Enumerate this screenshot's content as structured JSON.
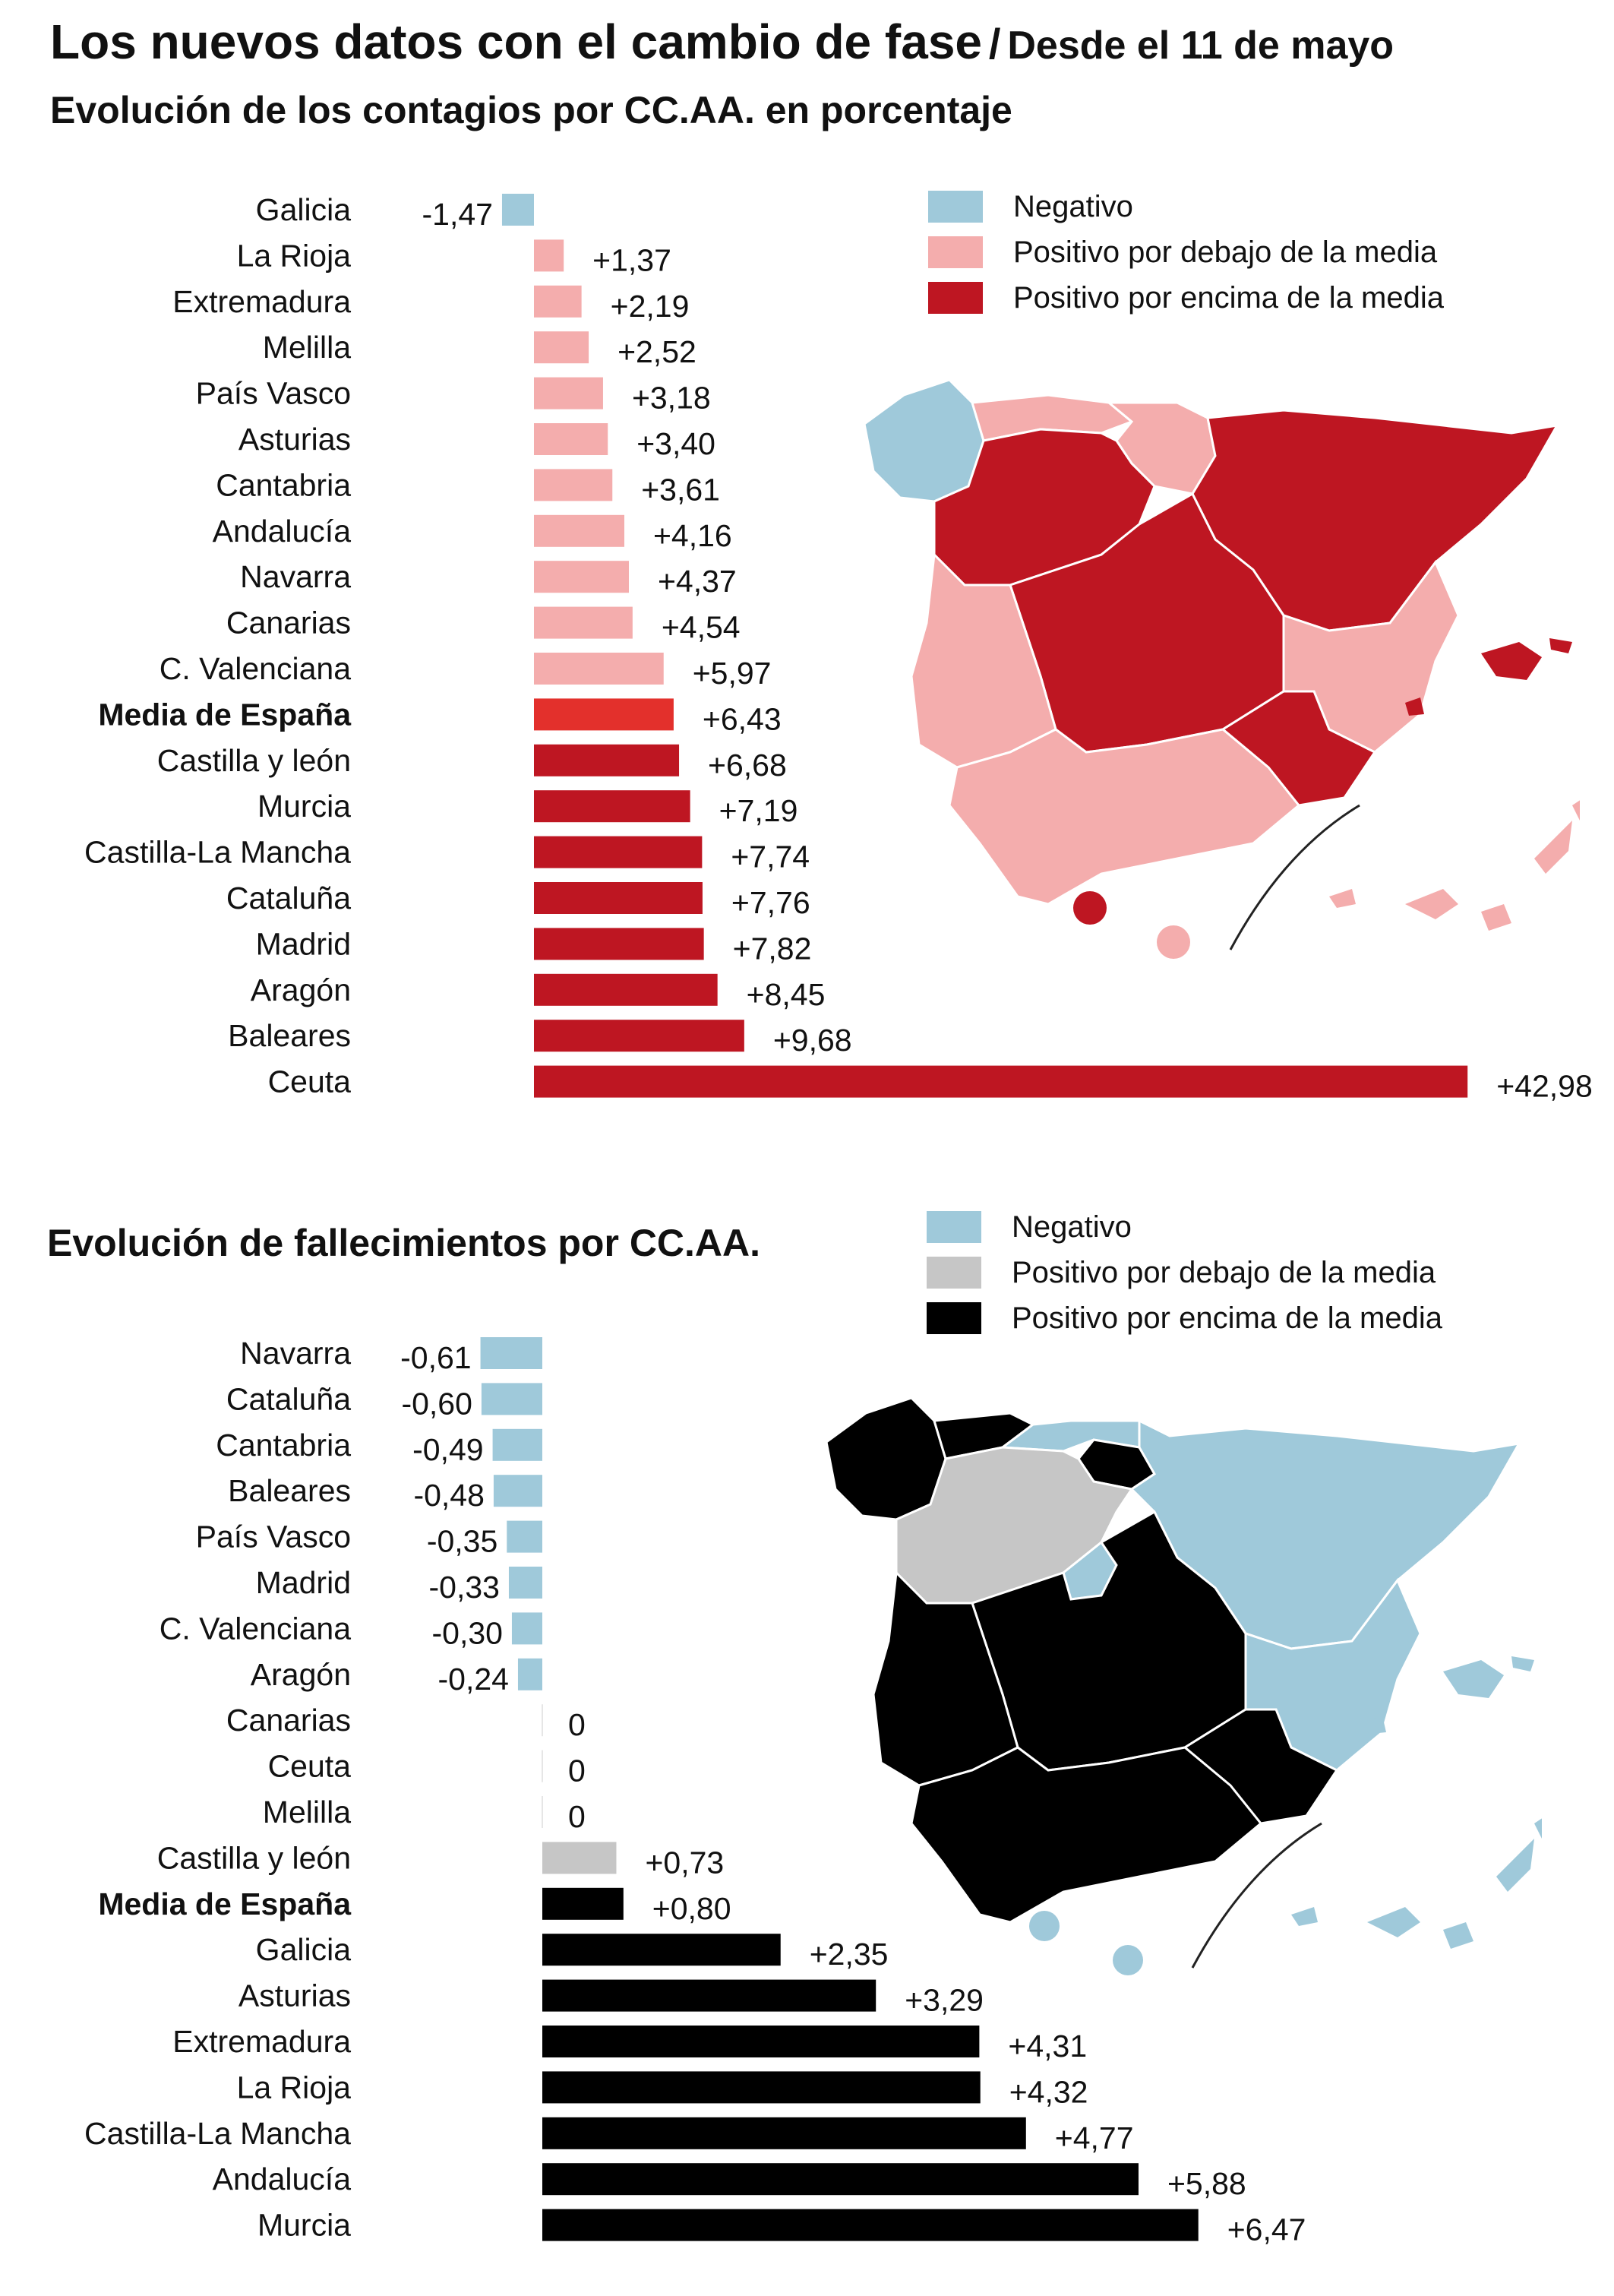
{
  "header": {
    "title": "Los nuevos datos con el cambio de fase",
    "separator": "/",
    "date_note": "Desde el 11 de mayo"
  },
  "colors": {
    "negative": "#9fc9da",
    "contagios_below": "#f4adad",
    "contagios_above": "#be1622",
    "contagios_media": "#e3302c",
    "fallecimientos_below": "#c6c6c6",
    "fallecimientos_above": "#000000"
  },
  "chart_data": [
    {
      "type": "bar",
      "orientation": "horizontal",
      "title": "Evolución de los contagios por CC.AA. en porcentaje",
      "xlabel": "",
      "ylabel": "",
      "xlim": [
        -1.47,
        42.98
      ],
      "legend": {
        "position": "top-right",
        "entries": [
          {
            "label": "Negativo",
            "color": "#9fc9da"
          },
          {
            "label": "Positivo por debajo de la media",
            "color": "#f4adad"
          },
          {
            "label": "Positivo por encima de la media",
            "color": "#be1622"
          }
        ]
      },
      "categories": [
        "Galicia",
        "La Rioja",
        "Extremadura",
        "Melilla",
        "País Vasco",
        "Asturias",
        "Cantabria",
        "Andalucía",
        "Navarra",
        "Canarias",
        "C. Valenciana",
        "Media de España",
        "Castilla y león",
        "Murcia",
        "Castilla-La Mancha",
        "Cataluña",
        "Madrid",
        "Aragón",
        "Baleares",
        "Ceuta"
      ],
      "values": [
        -1.47,
        1.37,
        2.19,
        2.52,
        3.18,
        3.4,
        3.61,
        4.16,
        4.37,
        4.54,
        5.97,
        6.43,
        6.68,
        7.19,
        7.74,
        7.76,
        7.82,
        8.45,
        9.68,
        42.98
      ],
      "value_labels": [
        "-1,47",
        "+1,37",
        "+2,19",
        "+2,52",
        "+3,18",
        "+3,40",
        "+3,61",
        "+4,16",
        "+4,37",
        "+4,54",
        "+5,97",
        "+6,43",
        "+6,68",
        "+7,19",
        "+7,74",
        "+7,76",
        "+7,82",
        "+8,45",
        "+9,68",
        "+42,98"
      ],
      "highlight_category": "Media de España"
    },
    {
      "type": "bar",
      "orientation": "horizontal",
      "title": "Evolución de fallecimientos por CC.AA.",
      "xlabel": "",
      "ylabel": "",
      "xlim": [
        -0.61,
        6.47
      ],
      "legend": {
        "position": "top-right",
        "entries": [
          {
            "label": "Negativo",
            "color": "#9fc9da"
          },
          {
            "label": "Positivo por debajo de la media",
            "color": "#c6c6c6"
          },
          {
            "label": "Positivo por encima de la media",
            "color": "#000000"
          }
        ]
      },
      "categories": [
        "Navarra",
        "Cataluña",
        "Cantabria",
        "Baleares",
        "País Vasco",
        "Madrid",
        "C. Valenciana",
        "Aragón",
        "Canarias",
        "Ceuta",
        "Melilla",
        "Castilla y león",
        "Media de España",
        "Galicia",
        "Asturias",
        "Extremadura",
        "La Rioja",
        "Castilla-La Mancha",
        "Andalucía",
        "Murcia"
      ],
      "values": [
        -0.61,
        -0.6,
        -0.49,
        -0.48,
        -0.35,
        -0.33,
        -0.3,
        -0.24,
        0,
        0,
        0,
        0.73,
        0.8,
        2.35,
        3.29,
        4.31,
        4.32,
        4.77,
        5.88,
        6.47
      ],
      "value_labels": [
        "-0,61",
        "-0,60",
        "-0,49",
        "-0,48",
        "-0,35",
        "-0,33",
        "-0,30",
        "-0,24",
        "0",
        "0",
        "0",
        "+0,73",
        "+0,80",
        "+2,35",
        "+3,29",
        "+4,31",
        "+4,32",
        "+4,77",
        "+5,88",
        "+6,47"
      ],
      "highlight_category": "Media de España"
    }
  ]
}
